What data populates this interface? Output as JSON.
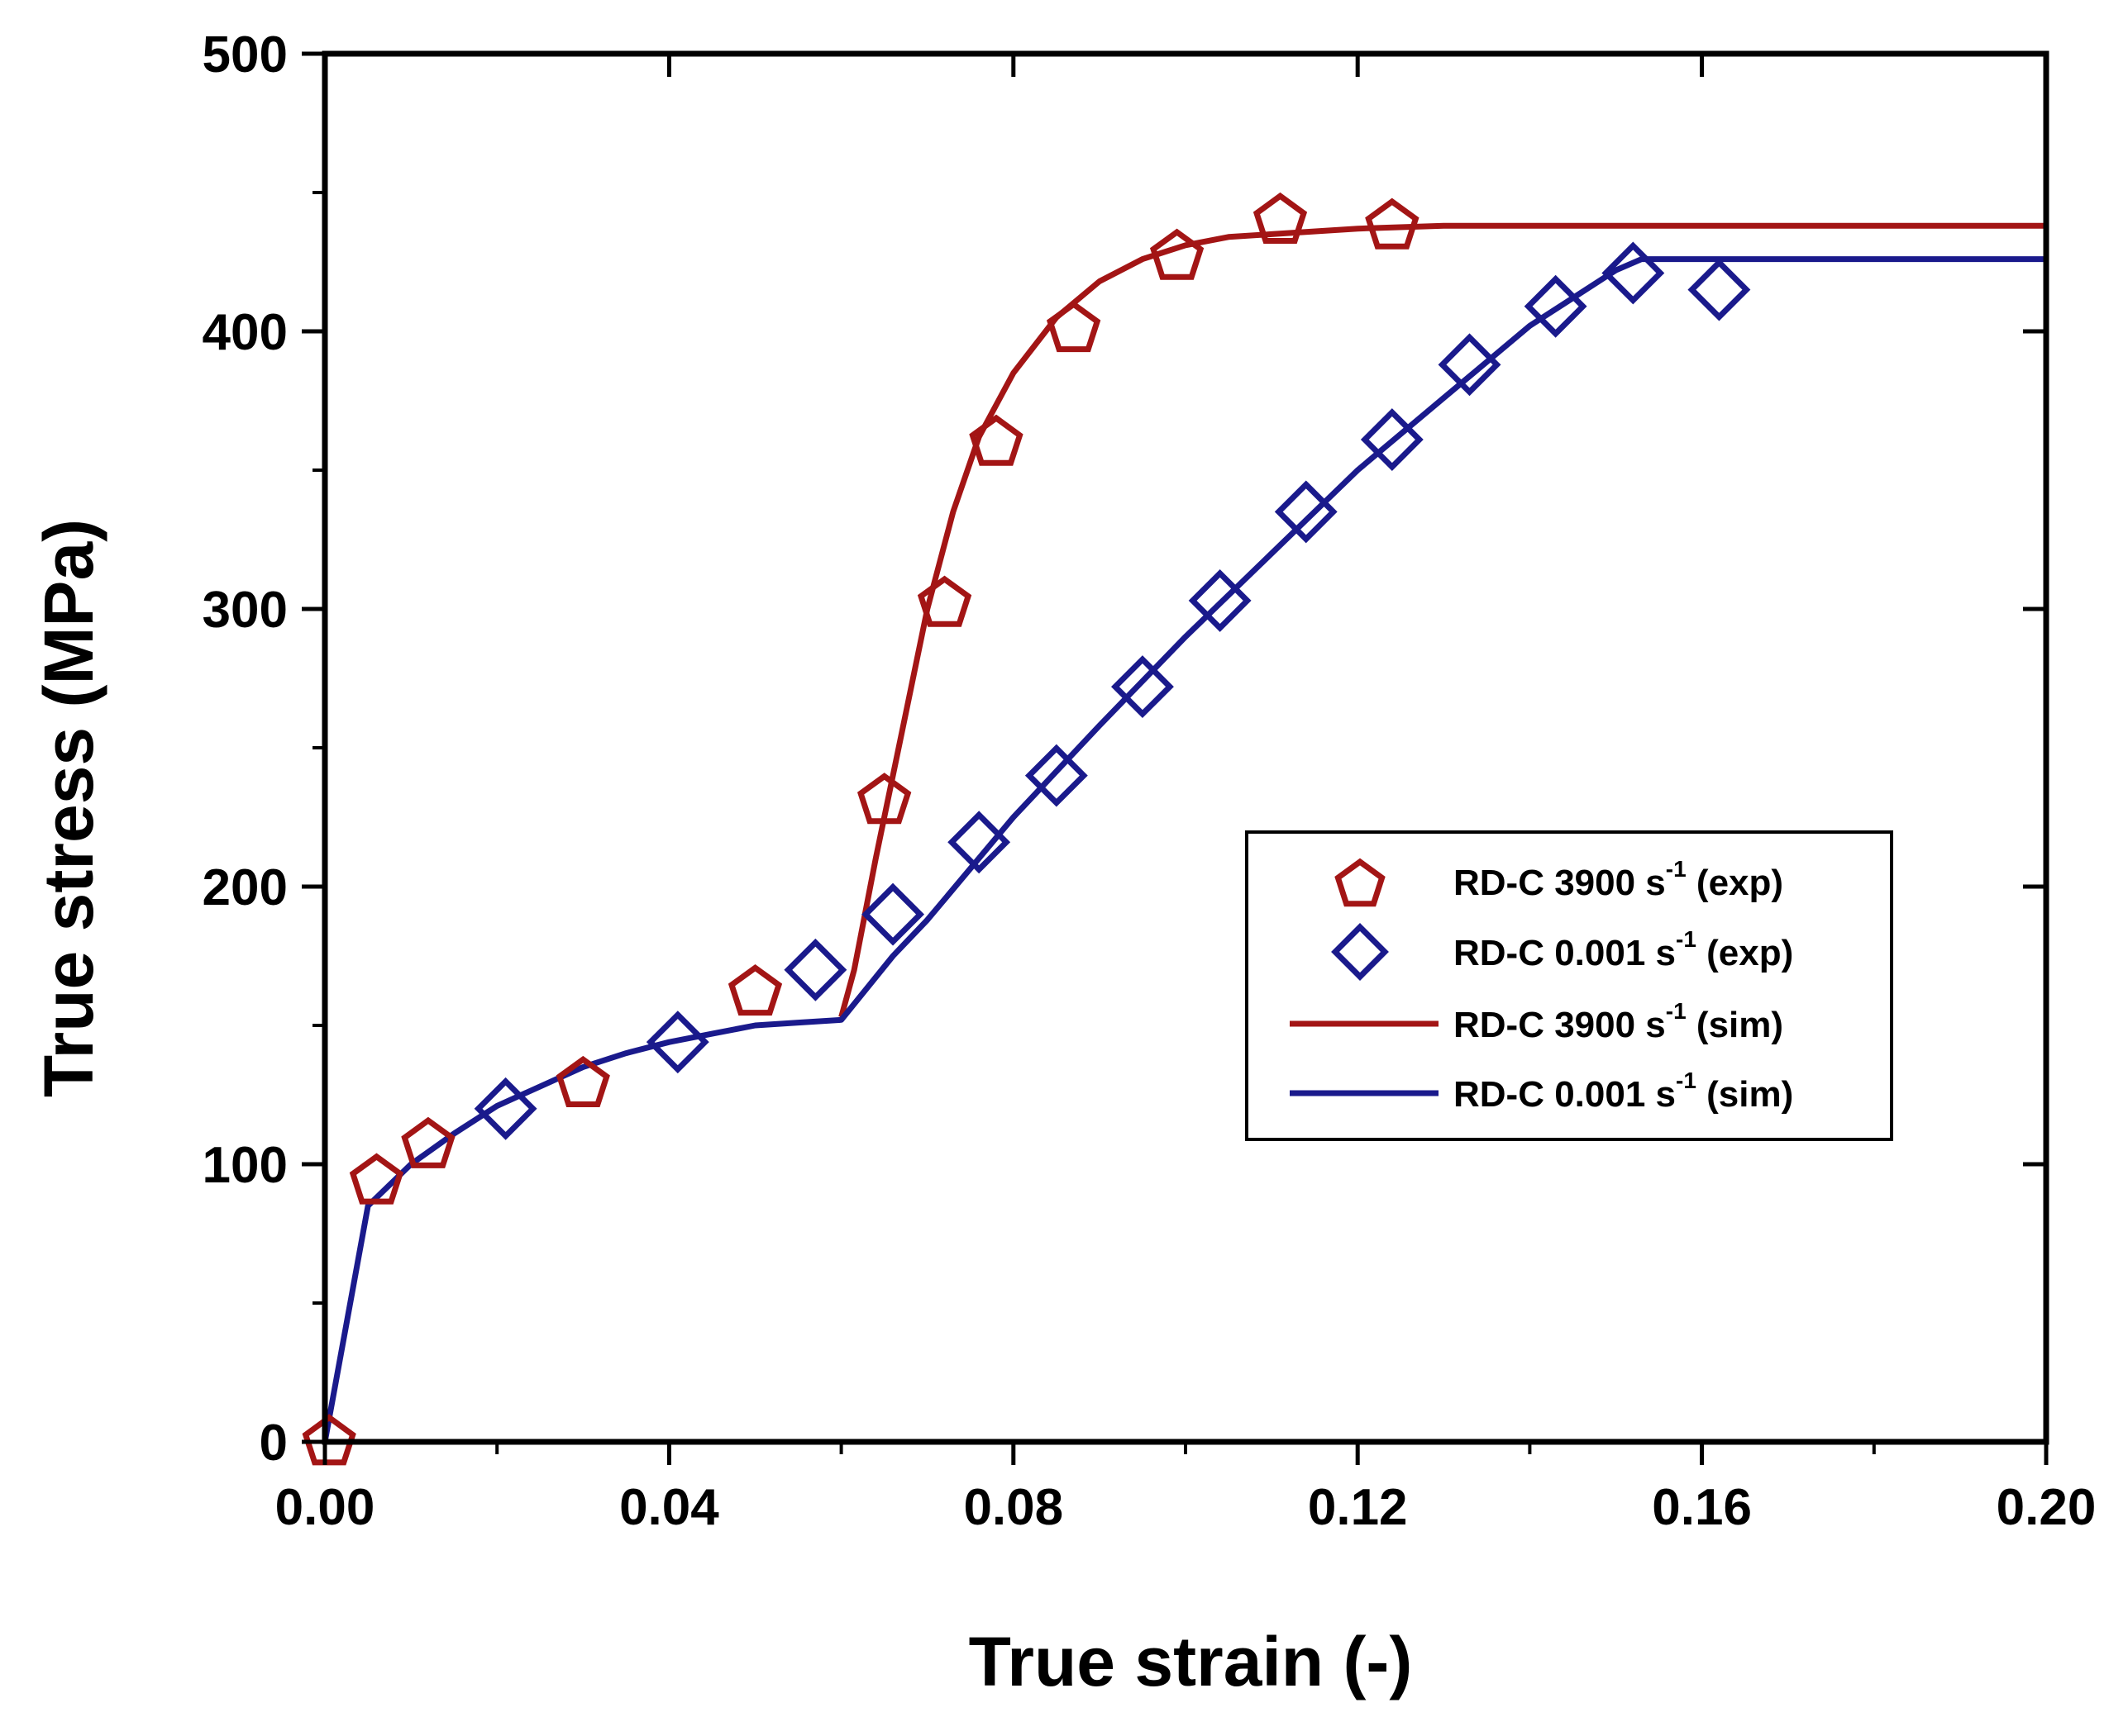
{
  "chart_data": {
    "type": "line",
    "xlabel": "True strain (-)",
    "ylabel": "True stress (MPa)",
    "xlim": [
      0.0,
      0.2
    ],
    "ylim": [
      0,
      500
    ],
    "x_ticks": [
      "0.00",
      "0.04",
      "0.08",
      "0.12",
      "0.16",
      "0.20"
    ],
    "x_tick_values": [
      0.0,
      0.04,
      0.08,
      0.12,
      0.16,
      0.2
    ],
    "x_minor_values": [
      0.02,
      0.06,
      0.1,
      0.14,
      0.18
    ],
    "y_ticks": [
      "0",
      "100",
      "200",
      "300",
      "400",
      "500"
    ],
    "y_tick_values": [
      0,
      100,
      200,
      300,
      400,
      500
    ],
    "y_minor_values": [
      50,
      150,
      250,
      350,
      450
    ],
    "legend_position": "center-right",
    "series": [
      {
        "name": "RD-C 3900 s-1 (exp)",
        "legend_main": "RD-C 3900 s",
        "legend_sup": "-1",
        "legend_tail": " (exp)",
        "kind": "markers",
        "marker": "pentagon",
        "color": "#a31515",
        "x": [
          0.0005,
          0.006,
          0.012,
          0.03,
          0.05,
          0.065,
          0.072,
          0.078,
          0.087,
          0.099,
          0.111,
          0.124
        ],
        "y": [
          1,
          95,
          108,
          130,
          163,
          232,
          303,
          361,
          402,
          428,
          441,
          439
        ]
      },
      {
        "name": "RD-C 0.001 s-1 (exp)",
        "legend_main": "RD-C 0.001 s",
        "legend_sup": "-1",
        "legend_tail": " (exp)",
        "kind": "markers",
        "marker": "diamond",
        "color": "#1a1a8c",
        "x": [
          0.021,
          0.041,
          0.057,
          0.066,
          0.076,
          0.085,
          0.095,
          0.104,
          0.114,
          0.124,
          0.133,
          0.143,
          0.152,
          0.162
        ],
        "y": [
          120,
          144,
          170,
          190,
          216,
          240,
          272,
          303,
          335,
          361,
          388,
          409,
          421,
          415
        ]
      },
      {
        "name": "RD-C 3900 s-1 (sim)",
        "legend_main": "RD-C 3900 s",
        "legend_sup": "-1",
        "legend_tail": " (sim)",
        "kind": "line",
        "color": "#a31515",
        "x": [
          0.06,
          0.0615,
          0.064,
          0.067,
          0.07,
          0.073,
          0.076,
          0.08,
          0.085,
          0.09,
          0.095,
          0.1,
          0.105,
          0.11,
          0.12,
          0.13,
          0.2
        ],
        "y": [
          153,
          170,
          210,
          255,
          300,
          335,
          362,
          385,
          405,
          418,
          426,
          431,
          434,
          435,
          437,
          438,
          438
        ]
      },
      {
        "name": "RD-C 0.001 s-1 (sim)",
        "legend_main": "RD-C 0.001 s",
        "legend_sup": "-1",
        "legend_tail": " (sim)",
        "kind": "line",
        "color": "#1a1a8c",
        "x": [
          0.0,
          0.005,
          0.01,
          0.015,
          0.02,
          0.025,
          0.03,
          0.035,
          0.04,
          0.045,
          0.05,
          0.055,
          0.06,
          0.066,
          0.07,
          0.08,
          0.09,
          0.1,
          0.11,
          0.12,
          0.13,
          0.14,
          0.15,
          0.153,
          0.2
        ],
        "y": [
          0,
          85,
          100,
          111,
          121,
          128,
          135,
          140,
          144,
          147,
          150,
          151,
          152,
          175,
          188,
          225,
          258,
          290,
          320,
          350,
          376,
          402,
          422,
          426,
          426
        ]
      }
    ]
  }
}
